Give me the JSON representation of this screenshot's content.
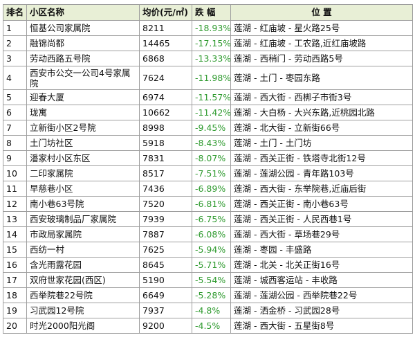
{
  "table": {
    "headers": {
      "rank": "排名",
      "name": "小区名称",
      "price": "均价(元/㎡)",
      "change": "跌 幅",
      "location": "位 置"
    },
    "rows": [
      {
        "rank": "1",
        "name": "恒基公司家属院",
        "price": "8211",
        "change": "-18.93%",
        "location": "莲湖 - 红庙坡 - 星火路25号"
      },
      {
        "rank": "2",
        "name": "融锦尚都",
        "price": "14465",
        "change": "-17.15%",
        "location": "莲湖 - 红庙坡 - 工农路,近红庙坡路"
      },
      {
        "rank": "3",
        "name": "劳动西路五号院",
        "price": "6868",
        "change": "-13.33%",
        "location": "莲湖 - 西稍门 - 劳动西路5号"
      },
      {
        "rank": "4",
        "name": "西安市公交一公司4号家属院",
        "price": "7624",
        "change": "-11.98%",
        "location": "莲湖 - 土门 - 枣园东路"
      },
      {
        "rank": "5",
        "name": "迎春大厦",
        "price": "6974",
        "change": "-11.57%",
        "location": "莲湖 - 西大街 - 西梆子市街3号"
      },
      {
        "rank": "6",
        "name": "珑寓",
        "price": "10662",
        "change": "-11.42%",
        "location": "莲湖 - 大白杨 - 大兴东路,近桃园北路"
      },
      {
        "rank": "7",
        "name": "立新街小区2号院",
        "price": "8998",
        "change": "-9.45%",
        "location": "莲湖 - 北大街 - 立新街66号"
      },
      {
        "rank": "8",
        "name": "土门坊社区",
        "price": "5918",
        "change": "-8.43%",
        "location": "莲湖 - 土门 - 土门坊"
      },
      {
        "rank": "9",
        "name": "潘家村小区东区",
        "price": "7831",
        "change": "-8.07%",
        "location": "莲湖 - 西关正街 - 铁塔寺北街12号"
      },
      {
        "rank": "10",
        "name": "二印家属院",
        "price": "8517",
        "change": "-7.51%",
        "location": "莲湖 - 莲湖公园 - 青年路103号"
      },
      {
        "rank": "11",
        "name": "早慈巷小区",
        "price": "7436",
        "change": "-6.89%",
        "location": "莲湖 - 西大街 - 东举院巷,近庙后街"
      },
      {
        "rank": "12",
        "name": "南小巷63号院",
        "price": "7520",
        "change": "-6.81%",
        "location": "莲湖 - 西关正街 - 南小巷63号"
      },
      {
        "rank": "13",
        "name": "西安玻璃制品厂家属院",
        "price": "7939",
        "change": "-6.75%",
        "location": "莲湖 - 西关正街 - 人民西巷1号"
      },
      {
        "rank": "14",
        "name": "市政局家属院",
        "price": "7887",
        "change": "-6.08%",
        "location": "莲湖 - 西大街 - 草场巷29号"
      },
      {
        "rank": "15",
        "name": "西纺一村",
        "price": "7625",
        "change": "-5.94%",
        "location": "莲湖 - 枣园 - 丰盛路"
      },
      {
        "rank": "16",
        "name": "含光雨露花园",
        "price": "8645",
        "change": "-5.71%",
        "location": "莲湖 - 北关 - 北关正街16号"
      },
      {
        "rank": "17",
        "name": "双府世家花园(西区)",
        "price": "5190",
        "change": "-5.54%",
        "location": "莲湖 - 城西客运站 - 丰收路"
      },
      {
        "rank": "18",
        "name": "西举院巷22号院",
        "price": "6649",
        "change": "-5.28%",
        "location": "莲湖 - 莲湖公园 - 西举院巷22号"
      },
      {
        "rank": "19",
        "name": "习武园12号院",
        "price": "7937",
        "change": "-4.8%",
        "location": "莲湖 - 洒金桥 - 习武园28号"
      },
      {
        "rank": "20",
        "name": "时光2000阳光阁",
        "price": "9200",
        "change": "-4.5%",
        "location": "莲湖 - 西大街 - 五星街8号"
      }
    ]
  }
}
